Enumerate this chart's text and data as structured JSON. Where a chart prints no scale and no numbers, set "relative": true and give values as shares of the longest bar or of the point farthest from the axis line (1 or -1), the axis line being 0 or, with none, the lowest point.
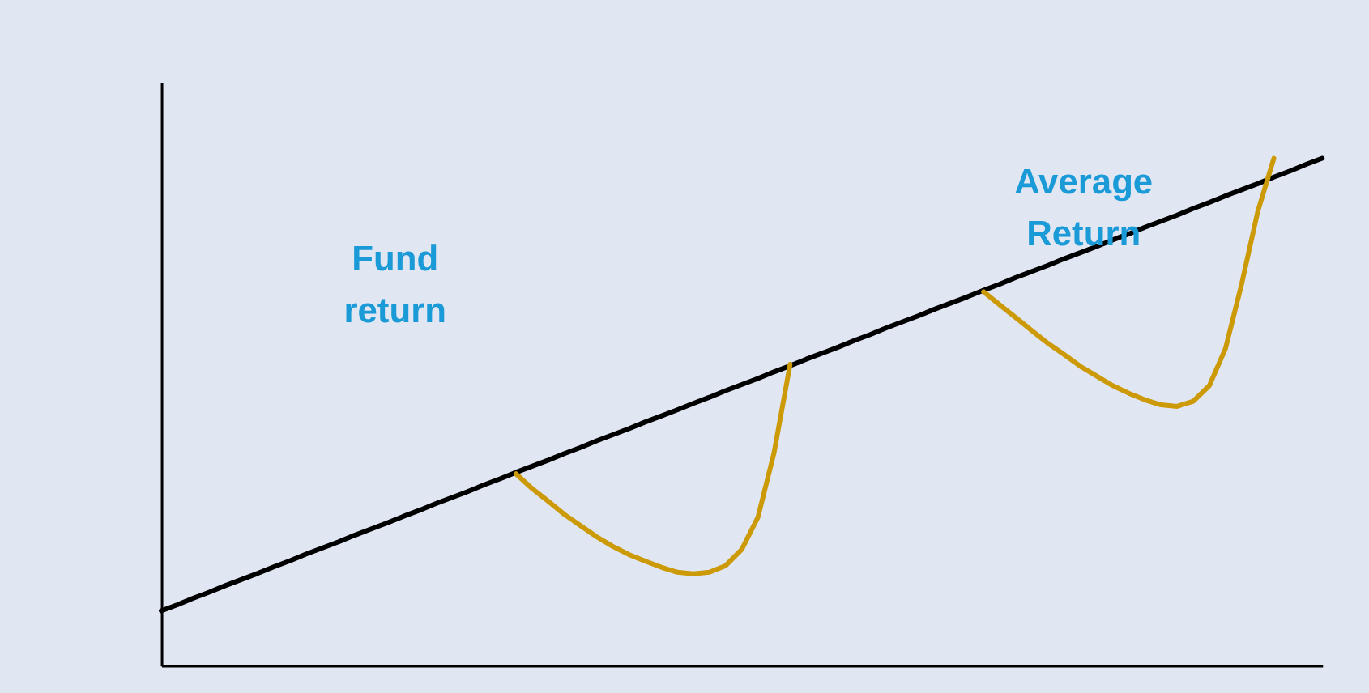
{
  "chart_data": {
    "type": "line",
    "relative": true,
    "categories": [
      null,
      null,
      null,
      null,
      null,
      null,
      null,
      null,
      null,
      null,
      null,
      null,
      null,
      null,
      null,
      null,
      null,
      null,
      null,
      null,
      null,
      null,
      null,
      null,
      null,
      null,
      null,
      null,
      null,
      null,
      null,
      null,
      null,
      null,
      null,
      null,
      null,
      null,
      null,
      null,
      null,
      null,
      null,
      null,
      null,
      null,
      null,
      null,
      null,
      null,
      null,
      null,
      null,
      null,
      null,
      null,
      null,
      null,
      null,
      null,
      null,
      null,
      null,
      null,
      null,
      null,
      null,
      null,
      null,
      null,
      null,
      null,
      null
    ],
    "series": [
      {
        "color": "#000000",
        "values": [
          0.108,
          0.12,
          0.133,
          0.145,
          0.158,
          0.17,
          0.182,
          0.195,
          0.207,
          0.22,
          0.232,
          0.244,
          0.257,
          0.269,
          0.281,
          0.294,
          0.306,
          0.319,
          0.331,
          0.343,
          0.356,
          0.368,
          0.381,
          0.393,
          0.405,
          0.418,
          0.43,
          0.443,
          0.455,
          0.467,
          0.48,
          0.492,
          0.504,
          0.517,
          0.529,
          0.542,
          0.554,
          0.566,
          0.579,
          0.591,
          0.604,
          0.616,
          0.628,
          0.641,
          0.653,
          0.666,
          0.678,
          0.69,
          0.703,
          0.715,
          0.727,
          0.74,
          0.752,
          0.765,
          0.777,
          0.789,
          0.802,
          0.814,
          0.826,
          0.839,
          0.851,
          0.864,
          0.876,
          0.888,
          0.901,
          0.913,
          0.926,
          0.938,
          0.95,
          0.963,
          0.975,
          0.988,
          1.0
        ]
      },
      {
        "color": "#cc9a06",
        "values": [
          null,
          null,
          null,
          null,
          null,
          null,
          null,
          null,
          null,
          null,
          null,
          null,
          null,
          null,
          null,
          null,
          null,
          null,
          null,
          null,
          null,
          null,
          0.378,
          0.349,
          0.324,
          0.298,
          0.276,
          0.254,
          0.235,
          0.219,
          0.206,
          0.194,
          0.184,
          0.181,
          0.184,
          0.197,
          0.229,
          0.292,
          0.419,
          0.594,
          null,
          null,
          null,
          null,
          null,
          null,
          null,
          null,
          null,
          null,
          null,
          null,
          null,
          null,
          null,
          null,
          null,
          null,
          null,
          null,
          null,
          null,
          null,
          null,
          null,
          null,
          null,
          null,
          null,
          null,
          null,
          null,
          null
        ]
      },
      {
        "color": "#cc9a06",
        "values": [
          null,
          null,
          null,
          null,
          null,
          null,
          null,
          null,
          null,
          null,
          null,
          null,
          null,
          null,
          null,
          null,
          null,
          null,
          null,
          null,
          null,
          null,
          null,
          null,
          null,
          null,
          null,
          null,
          null,
          null,
          null,
          null,
          null,
          null,
          null,
          null,
          null,
          null,
          null,
          null,
          null,
          null,
          null,
          null,
          null,
          null,
          null,
          null,
          null,
          null,
          null,
          0.737,
          0.711,
          0.686,
          0.66,
          0.635,
          0.613,
          0.59,
          0.571,
          0.552,
          0.537,
          0.524,
          0.514,
          0.511,
          0.521,
          0.552,
          0.625,
          0.752,
          0.895,
          1.0,
          null,
          null,
          null
        ]
      }
    ],
    "annotations": [
      "Fund return",
      "Average Return"
    ],
    "tick_labels": false,
    "grid": false,
    "legend": false,
    "marker": "none",
    "line_style": "solid"
  }
}
